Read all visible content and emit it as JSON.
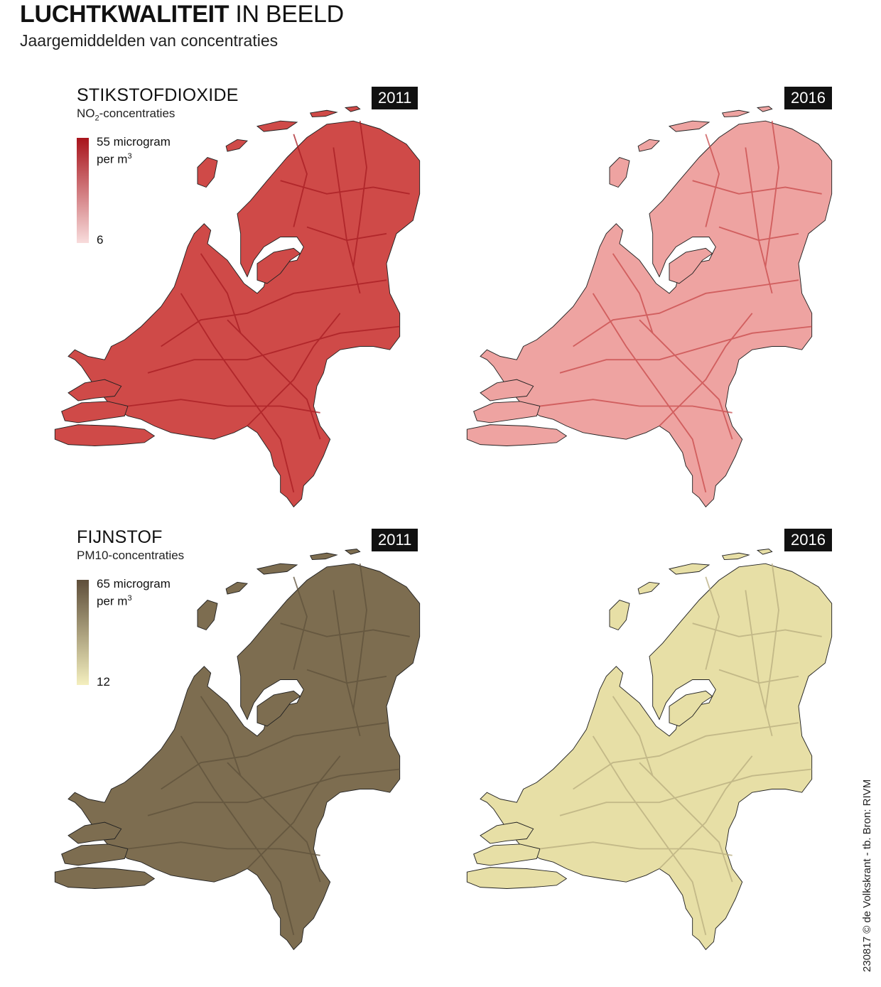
{
  "header": {
    "title_bold": "LUCHTKWALITEIT",
    "title_light": "IN BEELD",
    "subtitle": "Jaargemiddelden van concentraties"
  },
  "panels": {
    "no2": {
      "title": "STIKSTOFDIOXIDE",
      "sub_prefix": "NO",
      "sub_subscript": "2",
      "sub_suffix": "-concentraties",
      "legend_max_line1": "55 microgram",
      "legend_max_line2": "per m",
      "legend_unit_sup": "3",
      "legend_min": "6",
      "color_high": "#a8141c",
      "color_low": "#f8dcdc",
      "year_2011": "2011",
      "year_2016": "2016",
      "fill_2011": "#cf4a48",
      "fill_2016": "#eea3a1",
      "road_2011": "#a81c22",
      "road_2016": "#c8494a"
    },
    "pm10": {
      "title": "FIJNSTOF",
      "sub_text": "PM10-concentraties",
      "legend_max_line1": "65 microgram",
      "legend_max_line2": "per m",
      "legend_unit_sup": "3",
      "legend_min": "12",
      "color_high": "#5e4e3a",
      "color_low": "#f4efbe",
      "year_2011": "2011",
      "year_2016": "2016",
      "fill_2011": "#7d6d50",
      "fill_2016": "#e7dfa6",
      "road_2011": "#5f523b",
      "road_2016": "#b8ad7e"
    }
  },
  "credit": "230817 © de Volkskrant - tb. Bron: RIVM"
}
